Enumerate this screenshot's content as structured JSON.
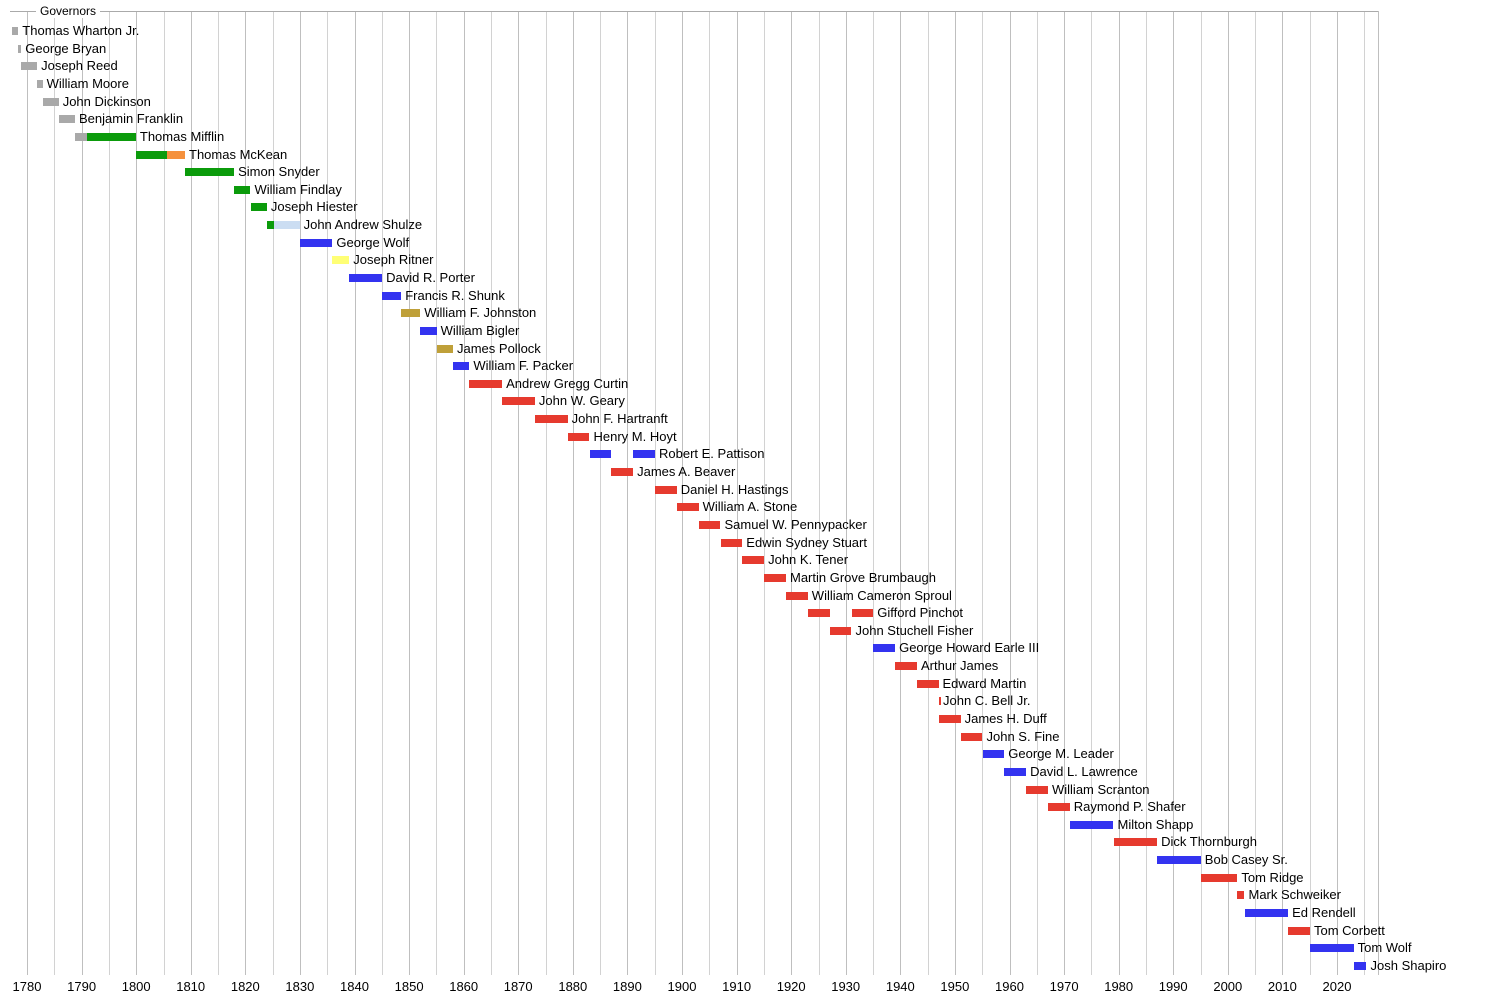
{
  "colors": {
    "independent": "#A9A9A9",
    "democratic_republican": "#0B9B0B",
    "federalist": "#F5913D",
    "jacksonian": "#CBDDF2",
    "democratic": "#3333F0",
    "anti_masonic": "#FFFF75",
    "whig": "#BFA039",
    "republican": "#E63A2E",
    "gridline": "#D2D2D2",
    "gridline_major": "#BFBFBF",
    "axis_line": "#AAAAAA",
    "text": "#000000",
    "background": "#FFFFFF"
  },
  "chart_data": {
    "type": "gantt",
    "title": "Governors",
    "xlabel": "",
    "ylabel": "",
    "x_axis": {
      "min": 1777,
      "max": 2026,
      "grid_interval": 5,
      "label_interval": 10,
      "ticks": [
        1780,
        1790,
        1800,
        1810,
        1820,
        1830,
        1840,
        1850,
        1860,
        1870,
        1880,
        1890,
        1900,
        1910,
        1920,
        1930,
        1940,
        1950,
        1960,
        1970,
        1980,
        1990,
        2000,
        2010,
        2020
      ]
    },
    "rows": [
      {
        "name": "Thomas Wharton Jr.",
        "terms": [
          {
            "start": 1777.2,
            "end": 1778.4,
            "party": "independent"
          }
        ]
      },
      {
        "name": "George Bryan",
        "terms": [
          {
            "start": 1778.4,
            "end": 1778.95,
            "party": "independent"
          }
        ]
      },
      {
        "name": "Joseph Reed",
        "terms": [
          {
            "start": 1778.95,
            "end": 1781.85,
            "party": "independent"
          }
        ]
      },
      {
        "name": "William Moore",
        "terms": [
          {
            "start": 1781.85,
            "end": 1782.85,
            "party": "independent"
          }
        ]
      },
      {
        "name": "John Dickinson",
        "terms": [
          {
            "start": 1782.85,
            "end": 1785.8,
            "party": "independent"
          }
        ]
      },
      {
        "name": "Benjamin Franklin",
        "terms": [
          {
            "start": 1785.8,
            "end": 1788.8,
            "party": "independent"
          }
        ]
      },
      {
        "name": "Thomas Mifflin",
        "terms": [
          {
            "start": 1788.8,
            "end": 1790.95,
            "party": "independent"
          },
          {
            "start": 1790.95,
            "end": 1799.95,
            "party": "democratic_republican"
          }
        ]
      },
      {
        "name": "Thomas McKean",
        "terms": [
          {
            "start": 1799.95,
            "end": 1805.6,
            "party": "democratic_republican"
          },
          {
            "start": 1805.6,
            "end": 1808.95,
            "party": "federalist"
          }
        ]
      },
      {
        "name": "Simon Snyder",
        "terms": [
          {
            "start": 1808.95,
            "end": 1817.95,
            "party": "democratic_republican"
          }
        ]
      },
      {
        "name": "William Findlay",
        "terms": [
          {
            "start": 1817.95,
            "end": 1820.95,
            "party": "democratic_republican"
          }
        ]
      },
      {
        "name": "Joseph Hiester",
        "terms": [
          {
            "start": 1820.95,
            "end": 1823.95,
            "party": "democratic_republican"
          }
        ]
      },
      {
        "name": "John Andrew Shulze",
        "terms": [
          {
            "start": 1823.95,
            "end": 1825.2,
            "party": "democratic_republican"
          },
          {
            "start": 1825.2,
            "end": 1829.95,
            "party": "jacksonian"
          }
        ]
      },
      {
        "name": "George Wolf",
        "terms": [
          {
            "start": 1829.95,
            "end": 1835.95,
            "party": "democratic"
          }
        ]
      },
      {
        "name": "Joseph Ritner",
        "terms": [
          {
            "start": 1835.95,
            "end": 1839.05,
            "party": "anti_masonic"
          }
        ]
      },
      {
        "name": "David R. Porter",
        "terms": [
          {
            "start": 1839.05,
            "end": 1845.05,
            "party": "democratic"
          }
        ]
      },
      {
        "name": "Francis R. Shunk",
        "terms": [
          {
            "start": 1845.05,
            "end": 1848.55,
            "party": "democratic"
          }
        ]
      },
      {
        "name": "William F. Johnston",
        "terms": [
          {
            "start": 1848.55,
            "end": 1852.05,
            "party": "whig"
          }
        ]
      },
      {
        "name": "William Bigler",
        "terms": [
          {
            "start": 1852.05,
            "end": 1855.05,
            "party": "democratic"
          }
        ]
      },
      {
        "name": "James Pollock",
        "terms": [
          {
            "start": 1855.05,
            "end": 1858.05,
            "party": "whig"
          }
        ]
      },
      {
        "name": "William F. Packer",
        "terms": [
          {
            "start": 1858.05,
            "end": 1861.05,
            "party": "democratic"
          }
        ]
      },
      {
        "name": "Andrew Gregg Curtin",
        "terms": [
          {
            "start": 1861.05,
            "end": 1867.05,
            "party": "republican"
          }
        ]
      },
      {
        "name": "John W. Geary",
        "terms": [
          {
            "start": 1867.05,
            "end": 1873.05,
            "party": "republican"
          }
        ]
      },
      {
        "name": "John F. Hartranft",
        "terms": [
          {
            "start": 1873.05,
            "end": 1879.05,
            "party": "republican"
          }
        ]
      },
      {
        "name": "Henry M. Hoyt",
        "terms": [
          {
            "start": 1879.05,
            "end": 1883.05,
            "party": "republican"
          }
        ]
      },
      {
        "name": "Robert E. Pattison",
        "terms": [
          {
            "start": 1883.05,
            "end": 1887.05,
            "party": "democratic"
          },
          {
            "start": 1891.05,
            "end": 1895.05,
            "party": "democratic"
          }
        ]
      },
      {
        "name": "James A. Beaver",
        "terms": [
          {
            "start": 1887.05,
            "end": 1891.05,
            "party": "republican"
          }
        ]
      },
      {
        "name": "Daniel H. Hastings",
        "terms": [
          {
            "start": 1895.05,
            "end": 1899.05,
            "party": "republican"
          }
        ]
      },
      {
        "name": "William A. Stone",
        "terms": [
          {
            "start": 1899.05,
            "end": 1903.05,
            "party": "republican"
          }
        ]
      },
      {
        "name": "Samuel W. Pennypacker",
        "terms": [
          {
            "start": 1903.05,
            "end": 1907.05,
            "party": "republican"
          }
        ]
      },
      {
        "name": "Edwin Sydney Stuart",
        "terms": [
          {
            "start": 1907.05,
            "end": 1911.05,
            "party": "republican"
          }
        ]
      },
      {
        "name": "John K. Tener",
        "terms": [
          {
            "start": 1911.05,
            "end": 1915.05,
            "party": "republican"
          }
        ]
      },
      {
        "name": "Martin Grove Brumbaugh",
        "terms": [
          {
            "start": 1915.05,
            "end": 1919.05,
            "party": "republican"
          }
        ]
      },
      {
        "name": "William Cameron Sproul",
        "terms": [
          {
            "start": 1919.05,
            "end": 1923.05,
            "party": "republican"
          }
        ]
      },
      {
        "name": "Gifford Pinchot",
        "terms": [
          {
            "start": 1923.05,
            "end": 1927.05,
            "party": "republican"
          },
          {
            "start": 1931.05,
            "end": 1935.05,
            "party": "republican"
          }
        ]
      },
      {
        "name": "John Stuchell Fisher",
        "terms": [
          {
            "start": 1927.05,
            "end": 1931.05,
            "party": "republican"
          }
        ]
      },
      {
        "name": "George Howard Earle III",
        "terms": [
          {
            "start": 1935.05,
            "end": 1939.05,
            "party": "democratic"
          }
        ]
      },
      {
        "name": "Arthur James",
        "terms": [
          {
            "start": 1939.05,
            "end": 1943.05,
            "party": "republican"
          }
        ]
      },
      {
        "name": "Edward Martin",
        "terms": [
          {
            "start": 1943.05,
            "end": 1947.0,
            "party": "republican"
          }
        ]
      },
      {
        "name": "John C. Bell Jr.",
        "terms": [
          {
            "start": 1947.0,
            "end": 1947.08,
            "party": "republican"
          }
        ]
      },
      {
        "name": "James H. Duff",
        "terms": [
          {
            "start": 1947.08,
            "end": 1951.05,
            "party": "republican"
          }
        ]
      },
      {
        "name": "John S. Fine",
        "terms": [
          {
            "start": 1951.05,
            "end": 1955.05,
            "party": "republican"
          }
        ]
      },
      {
        "name": "George M. Leader",
        "terms": [
          {
            "start": 1955.05,
            "end": 1959.05,
            "party": "democratic"
          }
        ]
      },
      {
        "name": "David L. Lawrence",
        "terms": [
          {
            "start": 1959.05,
            "end": 1963.05,
            "party": "democratic"
          }
        ]
      },
      {
        "name": "William Scranton",
        "terms": [
          {
            "start": 1963.05,
            "end": 1967.05,
            "party": "republican"
          }
        ]
      },
      {
        "name": "Raymond P. Shafer",
        "terms": [
          {
            "start": 1967.05,
            "end": 1971.05,
            "party": "republican"
          }
        ]
      },
      {
        "name": "Milton Shapp",
        "terms": [
          {
            "start": 1971.05,
            "end": 1979.05,
            "party": "democratic"
          }
        ]
      },
      {
        "name": "Dick Thornburgh",
        "terms": [
          {
            "start": 1979.05,
            "end": 1987.05,
            "party": "republican"
          }
        ]
      },
      {
        "name": "Bob Casey Sr.",
        "terms": [
          {
            "start": 1987.05,
            "end": 1995.05,
            "party": "democratic"
          }
        ]
      },
      {
        "name": "Tom Ridge",
        "terms": [
          {
            "start": 1995.05,
            "end": 2001.75,
            "party": "republican"
          }
        ]
      },
      {
        "name": "Mark Schweiker",
        "terms": [
          {
            "start": 2001.75,
            "end": 2003.05,
            "party": "republican"
          }
        ]
      },
      {
        "name": "Ed Rendell",
        "terms": [
          {
            "start": 2003.05,
            "end": 2011.05,
            "party": "democratic"
          }
        ]
      },
      {
        "name": "Tom Corbett",
        "terms": [
          {
            "start": 2011.05,
            "end": 2015.05,
            "party": "republican"
          }
        ]
      },
      {
        "name": "Tom Wolf",
        "terms": [
          {
            "start": 2015.05,
            "end": 2023.05,
            "party": "democratic"
          }
        ]
      },
      {
        "name": "Josh Shapiro",
        "terms": [
          {
            "start": 2023.05,
            "end": 2025.4,
            "party": "democratic"
          }
        ]
      }
    ]
  }
}
